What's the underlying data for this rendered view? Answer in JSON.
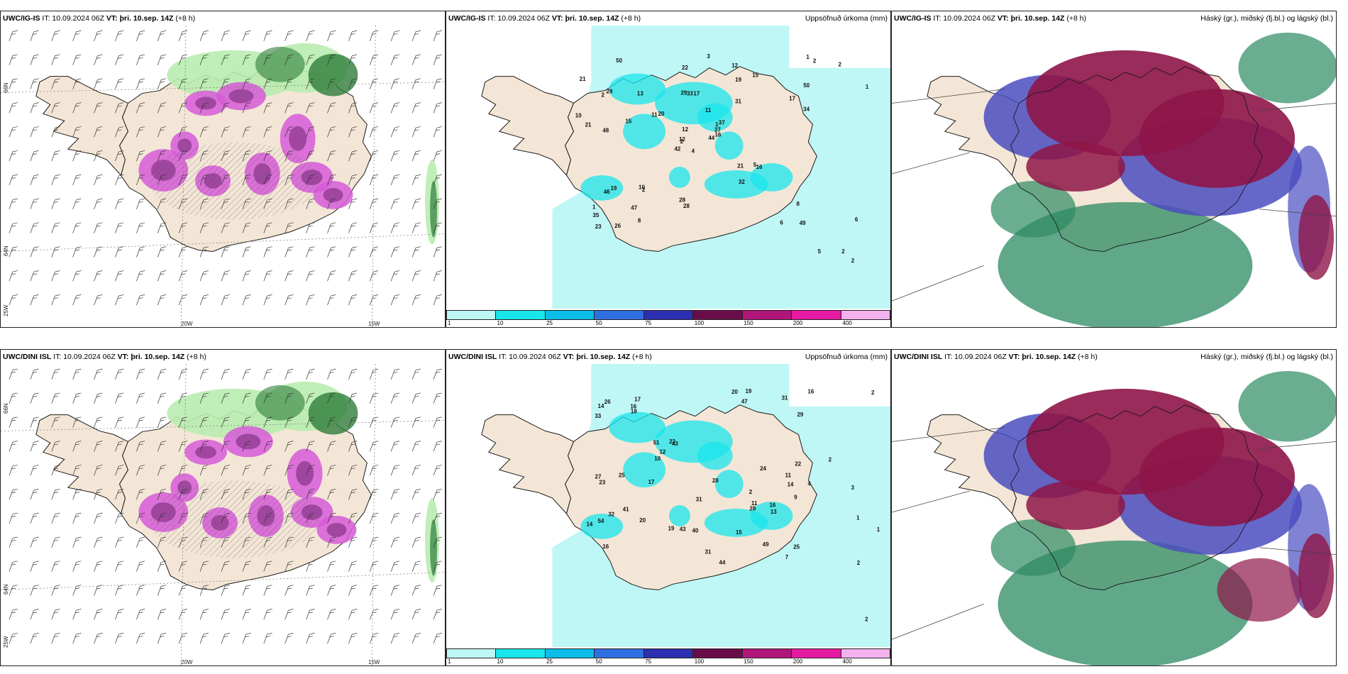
{
  "panels": [
    {
      "id": "r1c1",
      "model": "UWC/IG-IS",
      "it": "IT: 10.09.2024 06Z",
      "vt_label": "VT:",
      "vt": "þri. 10.sep. 14Z",
      "lead": "(+8 h)",
      "title_right": ""
    },
    {
      "id": "r1c2",
      "model": "UWC/IG-IS",
      "it": "IT: 10.09.2024 06Z",
      "vt_label": "VT:",
      "vt": "þri. 10.sep. 14Z",
      "lead": "(+8 h)",
      "title_right": "Uppsöfnuð úrkoma (mm)"
    },
    {
      "id": "r1c3",
      "model": "UWC/IG-IS",
      "it": "IT: 10.09.2024 06Z",
      "vt_label": "VT:",
      "vt": "þri. 10.sep. 14Z",
      "lead": "(+8 h)",
      "title_right": "Háský (gr.), miðský (fj.bl.) og lágský (bl.)"
    },
    {
      "id": "r2c1",
      "model": "UWC/DINI ISL",
      "it": "IT: 10.09.2024 06Z",
      "vt_label": "VT:",
      "vt": "þri. 10.sep. 14Z",
      "lead": "(+8 h)",
      "title_right": ""
    },
    {
      "id": "r2c2",
      "model": "UWC/DINI ISL",
      "it": "IT: 10.09.2024 06Z",
      "vt_label": "VT:",
      "vt": "þri. 10.sep. 14Z",
      "lead": "(+8 h)",
      "title_right": "Uppsöfnuð úrkoma (mm)"
    },
    {
      "id": "r2c3",
      "model": "UWC/DINI ISL",
      "it": "IT: 10.09.2024 06Z",
      "vt_label": "VT:",
      "vt": "þri. 10.sep. 14Z",
      "lead": "(+8 h)",
      "title_right": "Háský (gr.), miðský (fj.bl.) og lágský (bl.)"
    }
  ],
  "axis_labels": {
    "lat_66": "66N",
    "lat_64": "64N",
    "lon_25": "25W",
    "lon_20": "20W",
    "lon_15": "15W"
  },
  "legend": {
    "colors": [
      "#bff6f6",
      "#19e6ec",
      "#0bbde8",
      "#2f6fe0",
      "#2c2fb0",
      "#6a0c4a",
      "#b0157a",
      "#e61aa3",
      "#f4b2ee"
    ],
    "labels": [
      "1",
      "10",
      "25",
      "50",
      "75",
      "100",
      "150",
      "200",
      "400"
    ]
  },
  "precip_labels_top": [
    "4",
    "2",
    "2",
    "1",
    "1",
    "2",
    "12",
    "17",
    "19",
    "44",
    "50",
    "49",
    "48",
    "50",
    "42",
    "31",
    "26",
    "29",
    "11",
    "19",
    "20",
    "35",
    "47",
    "33",
    "37",
    "16",
    "29",
    "22",
    "21",
    "21",
    "34",
    "12",
    "28",
    "12",
    "13",
    "15",
    "10",
    "6",
    "8",
    "5",
    "3",
    "11",
    "15",
    "32",
    "8",
    "10",
    "27",
    "23",
    "28",
    "16",
    "46",
    "17",
    "21",
    "6",
    "2",
    "5",
    "2",
    "1",
    "2",
    "1",
    "2"
  ],
  "precip_labels_bottom": [
    "2",
    "14",
    "16",
    "17",
    "43",
    "49",
    "54",
    "47",
    "51",
    "44",
    "33",
    "27",
    "14",
    "25",
    "19",
    "22",
    "31",
    "28",
    "22",
    "41",
    "16",
    "31",
    "10",
    "9",
    "20",
    "16",
    "11",
    "23",
    "18",
    "24",
    "31",
    "15",
    "12",
    "17",
    "11",
    "13",
    "28",
    "25",
    "40",
    "32",
    "29",
    "19",
    "7",
    "43",
    "16",
    "20",
    "14",
    "26",
    "3",
    "4",
    "1",
    "2",
    "2",
    "1",
    "2",
    "2"
  ],
  "colors": {
    "land": "#f4e6d6",
    "coast": "#1a1a1a",
    "precip_light": "#bff6f6",
    "precip_mid": "#19e6ec",
    "mag": "#d65ad8",
    "green_light": "#b9ecb0",
    "green_dark": "#2e7d3a",
    "cloud_high": "#8e1548",
    "cloud_mid": "#4a4dc0",
    "cloud_low": "#2c8a62"
  }
}
